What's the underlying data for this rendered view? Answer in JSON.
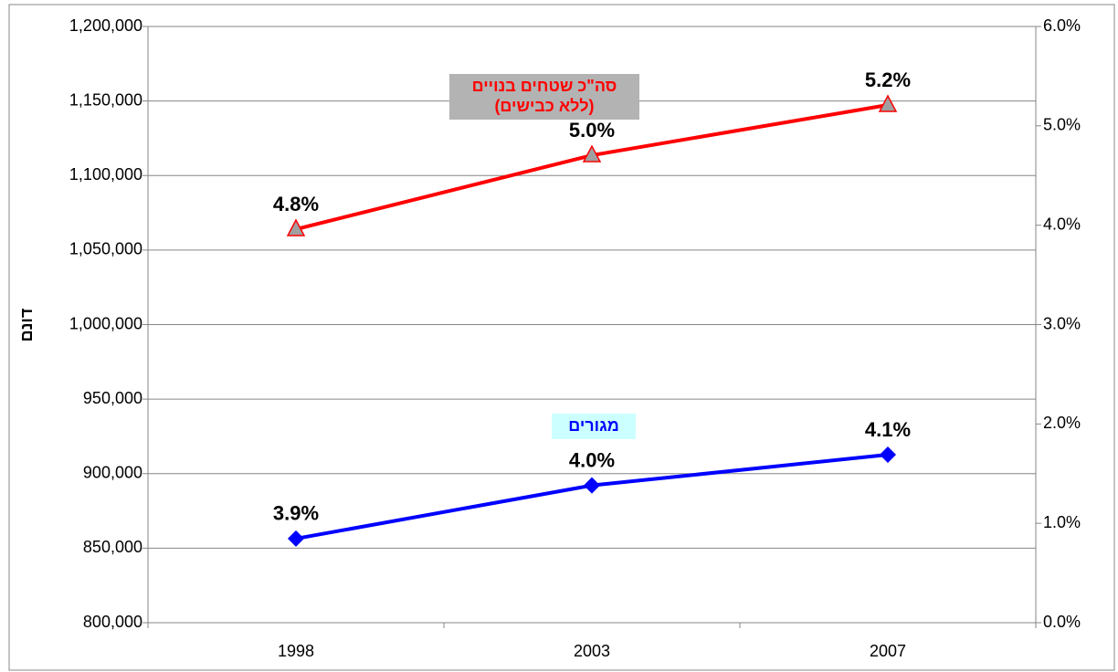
{
  "chart_data": {
    "type": "line",
    "y_axis_label": "דונם",
    "categories": [
      "1998",
      "2003",
      "2007"
    ],
    "series": [
      {
        "label_lines": [
          "סה\"כ שטחים בנויים",
          "(ללא כבישים)"
        ],
        "color": "#ff0000",
        "marker": "triangle",
        "marker_color": "#a0a0a0",
        "label_box_color": "#b3b3b3",
        "values": [
          1064000,
          1113600,
          1147300
        ],
        "point_labels": [
          "4.8%",
          "5.0%",
          "5.2%"
        ]
      },
      {
        "label_lines": [
          "מגורים"
        ],
        "color": "#0000ff",
        "marker": "diamond",
        "marker_color": "#0000ff",
        "label_box_color": "#ccffff",
        "values": [
          856400,
          892100,
          912700
        ],
        "point_labels": [
          "3.9%",
          "4.0%",
          "4.1%"
        ]
      }
    ],
    "ylim": [
      800000,
      1200000
    ],
    "yticks": [
      {
        "value": 800000,
        "label": "800,000"
      },
      {
        "value": 850000,
        "label": "850,000"
      },
      {
        "value": 900000,
        "label": "900,000"
      },
      {
        "value": 950000,
        "label": "950,000"
      },
      {
        "value": 1000000,
        "label": "1,000,000"
      },
      {
        "value": 1050000,
        "label": "1,050,000"
      },
      {
        "value": 1100000,
        "label": "1,100,000"
      },
      {
        "value": 1150000,
        "label": "1,150,000"
      },
      {
        "value": 1200000,
        "label": "1,200,000"
      }
    ],
    "y2lim": [
      0,
      6
    ],
    "y2ticks": [
      {
        "value": 0,
        "label": "0.0%"
      },
      {
        "value": 1,
        "label": "1.0%"
      },
      {
        "value": 2,
        "label": "2.0%"
      },
      {
        "value": 3,
        "label": "3.0%"
      },
      {
        "value": 4,
        "label": "4.0%"
      },
      {
        "value": 5,
        "label": "5.0%"
      },
      {
        "value": 6,
        "label": "6.0%"
      }
    ],
    "grid": true
  }
}
